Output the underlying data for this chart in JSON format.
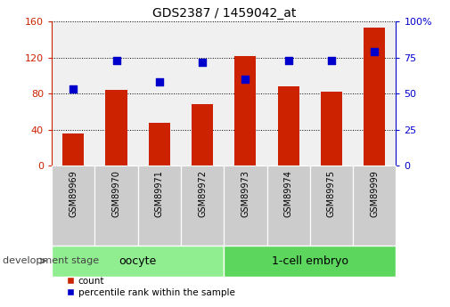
{
  "title": "GDS2387 / 1459042_at",
  "samples": [
    "GSM89969",
    "GSM89970",
    "GSM89971",
    "GSM89972",
    "GSM89973",
    "GSM89974",
    "GSM89975",
    "GSM89999"
  ],
  "counts": [
    36,
    84,
    48,
    68,
    122,
    88,
    82,
    153
  ],
  "percentile_ranks": [
    53,
    73,
    58,
    72,
    60,
    73,
    73,
    79
  ],
  "bar_color": "#cc2200",
  "dot_color": "#0000cc",
  "bar_width": 0.5,
  "ylim_left": [
    0,
    160
  ],
  "ylim_right": [
    0,
    100
  ],
  "yticks_left": [
    0,
    40,
    80,
    120,
    160
  ],
  "yticks_right": [
    0,
    25,
    50,
    75,
    100
  ],
  "plot_bg_color": "#f0f0f0",
  "grid_color": "#000000",
  "left_axis_color": "#cc2200",
  "right_axis_color": "#0000cc",
  "oocyte_color": "#90ee90",
  "embryo_color": "#5cd65c",
  "tick_bg_color": "#cccccc",
  "stage_label": "development stage",
  "figsize": [
    5.05,
    3.45
  ],
  "dpi": 100
}
